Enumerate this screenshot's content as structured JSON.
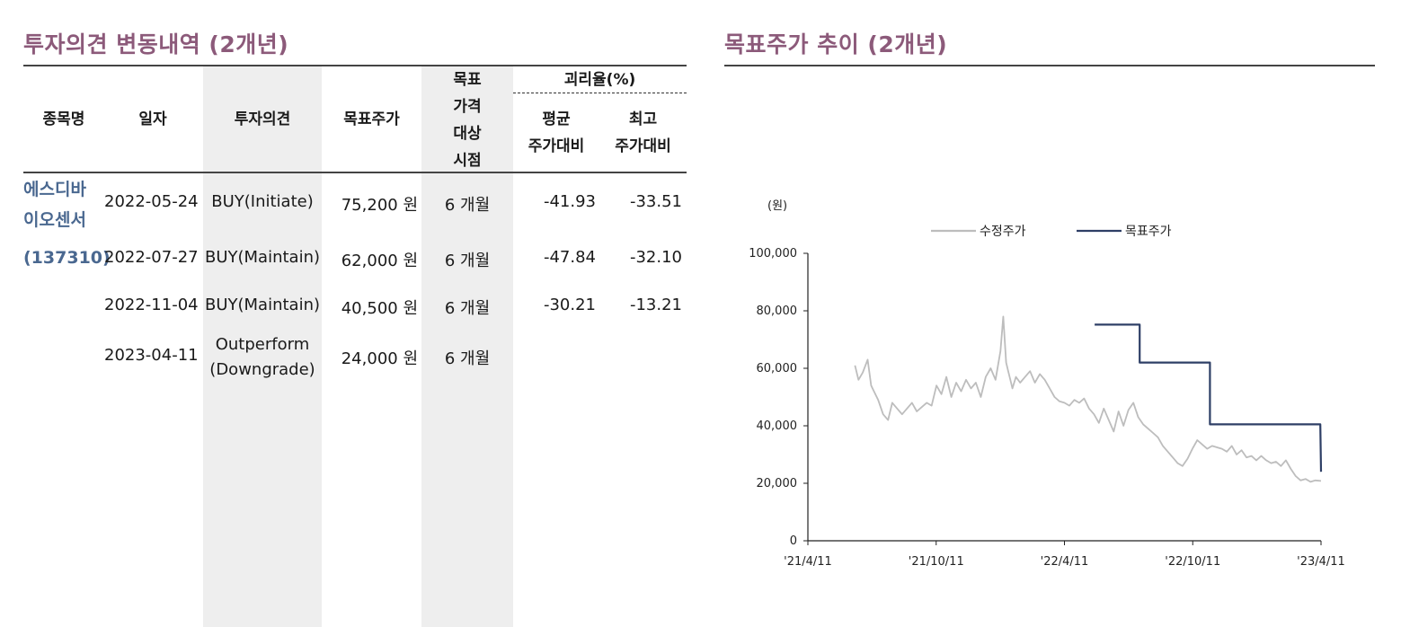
{
  "left": {
    "title": "투자의견 변동내역 (2개년)",
    "headers": {
      "stock": "종목명",
      "date": "일자",
      "opinion": "투자의견",
      "target": "목표주가",
      "target_period": [
        "목표",
        "가격",
        "대상",
        "시점"
      ],
      "gap_group": "괴리율(%)",
      "avg": [
        "평균",
        "주가대비"
      ],
      "max": [
        "최고",
        "주가대비"
      ]
    },
    "stock_name": [
      "에스디바",
      "이오센서",
      "(137310)"
    ],
    "rows": [
      {
        "date": "2022-05-24",
        "opinion": [
          "BUY(Initiate)"
        ],
        "target": "75,200 원",
        "period": "6 개월",
        "avg": "-41.93",
        "max": "-33.51"
      },
      {
        "date": "2022-07-27",
        "opinion": [
          "BUY(Maintain)"
        ],
        "target": "62,000 원",
        "period": "6 개월",
        "avg": "-47.84",
        "max": "-32.10"
      },
      {
        "date": "2022-11-04",
        "opinion": [
          "BUY(Maintain)"
        ],
        "target": "40,500 원",
        "period": "6 개월",
        "avg": "-30.21",
        "max": "-13.21"
      },
      {
        "date": "2023-04-11",
        "opinion": [
          "Outperform",
          "(Downgrade)"
        ],
        "target": "24,000 원",
        "period": "6 개월",
        "avg": "",
        "max": ""
      }
    ]
  },
  "chart_data": {
    "type": "line",
    "title": "목표주가 추이 (2개년)",
    "ylabel": "(원)",
    "ylim": [
      0,
      100000
    ],
    "yticks": [
      0,
      20000,
      40000,
      60000,
      80000,
      100000
    ],
    "ytick_labels": [
      "0",
      "20,000",
      "40,000",
      "60,000",
      "80,000",
      "100,000"
    ],
    "xlim": [
      "2021-04-11",
      "2023-04-11"
    ],
    "xtick_labels": [
      "'21/4/11",
      "'21/10/11",
      "'22/4/11",
      "'22/10/11",
      "'23/4/11"
    ],
    "legend": "top",
    "series": [
      {
        "name": "수정주가",
        "color": "#bdbdbd",
        "x": [
          "2021-06-17",
          "2021-06-22",
          "2021-06-28",
          "2021-07-05",
          "2021-07-10",
          "2021-07-14",
          "2021-07-20",
          "2021-07-27",
          "2021-08-03",
          "2021-08-09",
          "2021-08-16",
          "2021-08-23",
          "2021-08-30",
          "2021-09-06",
          "2021-09-13",
          "2021-09-20",
          "2021-09-27",
          "2021-10-04",
          "2021-10-11",
          "2021-10-18",
          "2021-10-25",
          "2021-11-01",
          "2021-11-08",
          "2021-11-15",
          "2021-11-22",
          "2021-11-29",
          "2021-12-06",
          "2021-12-13",
          "2021-12-20",
          "2021-12-27",
          "2022-01-03",
          "2022-01-10",
          "2022-01-14",
          "2022-01-18",
          "2022-01-21",
          "2022-01-24",
          "2022-01-27",
          "2022-02-01",
          "2022-02-07",
          "2022-02-14",
          "2022-02-21",
          "2022-02-28",
          "2022-03-07",
          "2022-03-14",
          "2022-03-21",
          "2022-03-28",
          "2022-04-04",
          "2022-04-11",
          "2022-04-18",
          "2022-04-25",
          "2022-05-02",
          "2022-05-09",
          "2022-05-16",
          "2022-05-23",
          "2022-05-30",
          "2022-06-06",
          "2022-06-13",
          "2022-06-20",
          "2022-06-27",
          "2022-07-04",
          "2022-07-11",
          "2022-07-18",
          "2022-07-25",
          "2022-08-01",
          "2022-08-08",
          "2022-08-15",
          "2022-08-22",
          "2022-08-29",
          "2022-09-05",
          "2022-09-12",
          "2022-09-19",
          "2022-09-26",
          "2022-10-03",
          "2022-10-10",
          "2022-10-17",
          "2022-10-24",
          "2022-10-31",
          "2022-11-07",
          "2022-11-14",
          "2022-11-21",
          "2022-11-28",
          "2022-12-05",
          "2022-12-12",
          "2022-12-19",
          "2022-12-26",
          "2023-01-02",
          "2023-01-09",
          "2023-01-16",
          "2023-01-23",
          "2023-01-30",
          "2023-02-06",
          "2023-02-13",
          "2023-02-20",
          "2023-02-27",
          "2023-03-06",
          "2023-03-13",
          "2023-03-20",
          "2023-03-27",
          "2023-04-03",
          "2023-04-11"
        ],
        "values": [
          61000,
          56000,
          58500,
          63000,
          54000,
          52000,
          49000,
          44000,
          42000,
          48000,
          46000,
          44000,
          46000,
          48000,
          45000,
          46500,
          48000,
          47000,
          54000,
          51000,
          57000,
          50000,
          55000,
          52000,
          56000,
          53000,
          55000,
          50000,
          57000,
          60000,
          56000,
          66000,
          78000,
          62000,
          59000,
          56000,
          53000,
          57000,
          55000,
          57000,
          59000,
          55000,
          58000,
          56000,
          53000,
          50000,
          48500,
          48000,
          47000,
          49000,
          48000,
          49500,
          46000,
          44000,
          41000,
          46000,
          42000,
          38000,
          45000,
          40000,
          45500,
          48000,
          43000,
          40500,
          39000,
          37500,
          36000,
          33000,
          31000,
          29000,
          27000,
          26000,
          28500,
          32000,
          35000,
          33500,
          32000,
          33000,
          32500,
          32000,
          31000,
          33000,
          30000,
          31500,
          29000,
          29500,
          28000,
          29500,
          28000,
          27000,
          27500,
          26000,
          28000,
          25000,
          22500,
          21000,
          21500,
          20500,
          21000,
          20800
        ]
      },
      {
        "name": "목표주가",
        "color": "#2e3f66",
        "x": [
          "2022-05-24",
          "2022-07-27",
          "2022-07-27",
          "2022-11-04",
          "2022-11-04",
          "2023-04-10",
          "2023-04-11"
        ],
        "values": [
          75200,
          75200,
          62000,
          62000,
          40500,
          40500,
          24000
        ]
      }
    ]
  }
}
